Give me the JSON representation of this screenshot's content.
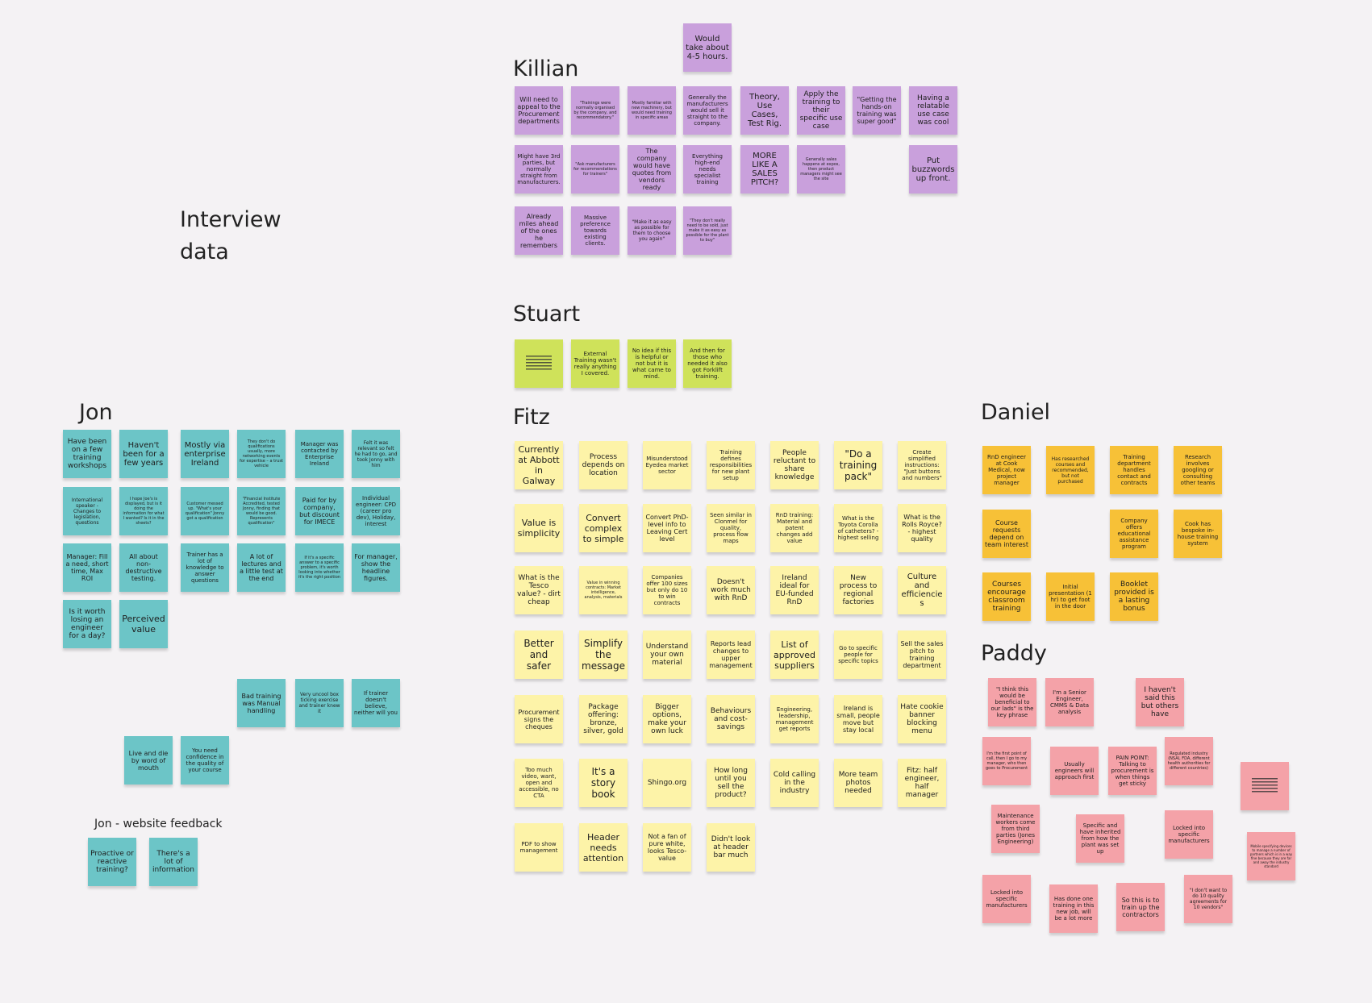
{
  "board": {
    "title_line1": "Interview",
    "title_line2": "data",
    "colors": {
      "background": "#f4f2f4",
      "purple": "#c9a0dc",
      "green": "#cfe25a",
      "yellow": "#fdf3a8",
      "orange": "#f7c137",
      "teal": "#6cc5c7",
      "pink": "#f4a2a8"
    }
  },
  "killian": {
    "heading": "Killian",
    "notes": [
      "Would take about 4-5 hours.",
      "Will need to appeal to the Procurement departments",
      "\"Trainings were normally organised by the company, and recommendatory.\"",
      "Mostly familiar with new machinery, but would need training in specific areas",
      "Generally the manufacturers would sell it straight to the company.",
      "Theory, Use Cases, Test Rig.",
      "Apply the training to their specific use case",
      "\"Getting the hands-on training was super good\"",
      "Having a relatable use case was cool",
      "Might have 3rd parties, but normally straight from manufacturers.",
      "\"Ask manufacturers for recommendations for trainers\"",
      "The company would have quotes from vendors ready",
      "Everything high-end needs specialist training",
      "MORE LIKE A SALES PITCH?",
      "Generally sales happens at expos, then product managers might see the site",
      "Put buzzwords up front.",
      "Already miles ahead of the ones he remembers",
      "Massive preference towards existing clients.",
      "\"Make it as easy as possible for them to choose you again\"",
      "\"They don't really need to be sold, just make it as easy as possible for the plant to buy\""
    ]
  },
  "stuart": {
    "heading": "Stuart",
    "notes": [
      "External Training wasn't really anything I covered.",
      "No idea if this is helpful or not but it is what came to mind.",
      "And then for those who needed it also got Forklift training."
    ]
  },
  "fitz": {
    "heading": "Fitz",
    "notes": [
      "Currently at Abbott in Galway",
      "Process depends on location",
      "Misunderstood Eyedea market sector",
      "Training defines responsibilities for new plant setup",
      "People reluctant to share knowledge",
      "\"Do a training pack\"",
      "Create simplified instructions: \"Just buttons and numbers\"",
      "Value is simplicity",
      "Convert complex to simple",
      "Convert PhD-level info to Leaving Cert level",
      "Seen similar in Clonmel for quality, process flow maps",
      "RnD training: Material and patent changes add value",
      "What is the Toyota Corolla of catheters? - highest selling",
      "What is the Rolls Royce? - highest quality",
      "What is the Tesco value? - dirt cheap",
      "Value in winning contracts: Market intelligence, analysis, materials",
      "Companies offer 100 sizes but only do 10 to win contracts",
      "Doesn't work much with RnD",
      "Ireland ideal for EU-funded RnD",
      "New process to regional factories",
      "Culture and efficiencies",
      "Better and safer",
      "Simplify the message",
      "Understand your own material",
      "Reports lead changes to upper management",
      "List of approved suppliers",
      "Go to specific people for specific topics",
      "Sell the sales pitch to training department",
      "Procurement signs the cheques",
      "Package offering: bronze, silver, gold",
      "Bigger options, make your own luck",
      "Behaviours and cost-savings",
      "Engineering, leadership, management get reports",
      "Ireland is small, people move but stay local",
      "Hate cookie banner blocking menu",
      "Too much video, want, open and accessible, no CTA",
      "It's a story book",
      "Shingo.org",
      "How long until you sell the product?",
      "Cold calling in the industry",
      "More team photos needed",
      "Fitz: half engineer, half manager",
      "PDF to show management",
      "Header needs attention",
      "Not a fan of pure white, looks Tesco-value",
      "Didn't look at header bar much"
    ]
  },
  "daniel": {
    "heading": "Daniel",
    "notes": [
      "RnD engineer at Cook Medical, now project manager",
      "Has researched courses and recommended, but not purchased",
      "Training department handles contact and contracts",
      "Research involves googling or consulting other teams",
      "Course requests depend on team interest",
      "Company offers educational assistance program",
      "Cook has bespoke in-house training system",
      "Courses encourage classroom training",
      "Initial presentation (1 hr) to get foot in the door",
      "Booklet provided is a lasting bonus"
    ]
  },
  "paddy": {
    "heading": "Paddy",
    "notes": [
      "\"I think this would be beneficial to our lads\" is the key phrase",
      "I'm a Senior Engineer, CMMS & Data analysis",
      "I haven't said this but others have",
      "I'm the first point of call, then I go to my manager, who then goes to Procurement",
      "Usually engineers will approach first",
      "PAIN POINT: Talking to procurement is when things get sticky",
      "Regulated industry (NSAI, FDA, different health authorities for different countries)",
      "Maintenance workers come from third parties (Jones Engineering)",
      "Specific and have inherited from how the plant was set up",
      "Locked into specific manufacturers",
      "Mobile specifying devices to manage a number of partners which is in a way fine because they are far and away the industry standard",
      "Locked into specific manufacturers",
      "Has done one training in this new job, will be a lot more",
      "So this is to train up the contractors",
      "\"I don't want to do 10 quality agreements for 10 vendors\""
    ]
  },
  "jon": {
    "heading": "Jon",
    "notes": [
      "Have been on a few training workshops",
      "Haven't been for a few years",
      "Mostly via enterprise Ireland",
      "They don't do qualifications usually, more networking events for expertise – a trust vehicle",
      "Manager was contacted by Enterprise Ireland",
      "Felt it was relevant so felt he had to go, and took Jonny with him",
      "International speaker - Changes to legislation, questions",
      "I hope Joe's is displayed, but is it doing the information for what I wanted? Is it in the sheets?",
      "Customer messed up. \"What's your qualification\" Jonny got a qualification",
      "\"Financial Institute Accredited, tested Jonny, finding that would be good. Represents qualification\"",
      "Paid for by company, but discount for IMECE",
      "Individual engineer: CPD (career pro dev), Holiday, interest",
      "Manager: Fill a need, short time, Max ROI",
      "All about non-destructive testing.",
      "Trainer has a lot of knowledge to answer questions",
      "A lot of lectures and a little test at the end",
      "If it's a specific answer to a specific problem, it's worth looking into whether it's the right position",
      "For manager, show the headline figures.",
      "Is it worth losing an engineer for a day?",
      "Perceived value",
      "Bad training was Manual handling",
      "Very uncool box ticking exercise and trainer knew it",
      "If trainer doesn't believe, neither will you",
      "Live and die by word of mouth",
      "You need confidence in the quality of your course"
    ]
  },
  "jon_website": {
    "heading": "Jon - website feedback",
    "notes": [
      "Proactive or reactive training?",
      "There's a lot of information"
    ]
  }
}
